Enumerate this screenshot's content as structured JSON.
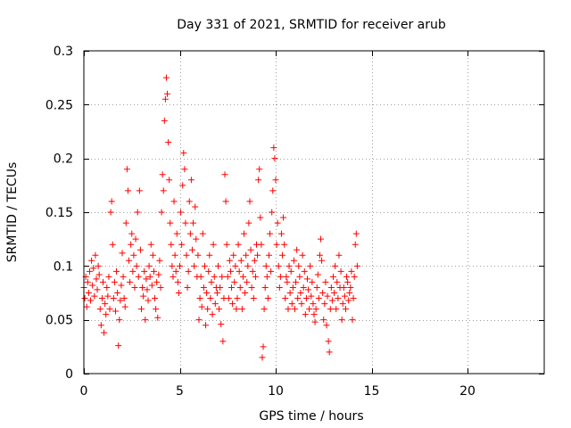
{
  "chart_data": {
    "type": "scatter",
    "title": "Day 331 of 2021, SRMTID for receiver arub",
    "xlabel": "GPS time / hours",
    "ylabel": "SRMTID / TECUs",
    "xlim": [
      0,
      24
    ],
    "ylim": [
      0,
      0.3
    ],
    "xticks": [
      0,
      5,
      10,
      15,
      20
    ],
    "xtick_labels": [
      "0",
      "5",
      "10",
      "15",
      "20"
    ],
    "yticks": [
      0,
      0.05,
      0.1,
      0.15,
      0.2,
      0.25,
      0.3
    ],
    "ytick_labels": [
      "0",
      "0.05",
      "0.1",
      "0.15",
      "0.2",
      "0.25",
      "0.3"
    ],
    "grid": true,
    "marker": "plus",
    "series": [
      {
        "name": "SRMTID",
        "color": "#ff0000",
        "points": [
          [
            0.0,
            0.08
          ],
          [
            0.05,
            0.07
          ],
          [
            0.1,
            0.09
          ],
          [
            0.15,
            0.062
          ],
          [
            0.2,
            0.085
          ],
          [
            0.25,
            0.075
          ],
          [
            0.3,
            0.095
          ],
          [
            0.35,
            0.068
          ],
          [
            0.4,
            0.105
          ],
          [
            0.45,
            0.082
          ],
          [
            0.5,
            0.098
          ],
          [
            0.55,
            0.072
          ],
          [
            0.6,
            0.11
          ],
          [
            0.65,
            0.088
          ],
          [
            0.7,
            0.078
          ],
          [
            0.75,
            0.1
          ],
          [
            0.8,
            0.092
          ],
          [
            0.85,
            0.06
          ],
          [
            0.9,
            0.045
          ],
          [
            0.95,
            0.07
          ],
          [
            1.0,
            0.085
          ],
          [
            1.05,
            0.038
          ],
          [
            1.1,
            0.065
          ],
          [
            1.15,
            0.055
          ],
          [
            1.2,
            0.08
          ],
          [
            1.25,
            0.072
          ],
          [
            1.3,
            0.09
          ],
          [
            1.35,
            0.06
          ],
          [
            1.4,
            0.15
          ],
          [
            1.45,
            0.16
          ],
          [
            1.5,
            0.12
          ],
          [
            1.55,
            0.07
          ],
          [
            1.6,
            0.085
          ],
          [
            1.65,
            0.058
          ],
          [
            1.7,
            0.095
          ],
          [
            1.75,
            0.075
          ],
          [
            1.8,
            0.026
          ],
          [
            1.85,
            0.05
          ],
          [
            1.9,
            0.068
          ],
          [
            1.95,
            0.082
          ],
          [
            2.0,
            0.112
          ],
          [
            2.05,
            0.09
          ],
          [
            2.1,
            0.07
          ],
          [
            2.15,
            0.062
          ],
          [
            2.2,
            0.14
          ],
          [
            2.25,
            0.19
          ],
          [
            2.3,
            0.17
          ],
          [
            2.35,
            0.105
          ],
          [
            2.4,
            0.085
          ],
          [
            2.45,
            0.12
          ],
          [
            2.5,
            0.13
          ],
          [
            2.55,
            0.095
          ],
          [
            2.6,
            0.11
          ],
          [
            2.65,
            0.08
          ],
          [
            2.7,
            0.125
          ],
          [
            2.75,
            0.1
          ],
          [
            2.8,
            0.15
          ],
          [
            2.85,
            0.09
          ],
          [
            2.9,
            0.17
          ],
          [
            2.95,
            0.115
          ],
          [
            3.0,
            0.06
          ],
          [
            3.05,
            0.08
          ],
          [
            3.1,
            0.072
          ],
          [
            3.15,
            0.095
          ],
          [
            3.2,
            0.05
          ],
          [
            3.25,
            0.088
          ],
          [
            3.3,
            0.078
          ],
          [
            3.35,
            0.068
          ],
          [
            3.4,
            0.1
          ],
          [
            3.45,
            0.09
          ],
          [
            3.5,
            0.12
          ],
          [
            3.55,
            0.082
          ],
          [
            3.6,
            0.11
          ],
          [
            3.65,
            0.095
          ],
          [
            3.7,
            0.07
          ],
          [
            3.75,
            0.06
          ],
          [
            3.8,
            0.085
          ],
          [
            3.85,
            0.052
          ],
          [
            3.9,
            0.092
          ],
          [
            3.95,
            0.105
          ],
          [
            4.0,
            0.08
          ],
          [
            4.05,
            0.15
          ],
          [
            4.1,
            0.185
          ],
          [
            4.15,
            0.17
          ],
          [
            4.2,
            0.235
          ],
          [
            4.25,
            0.255
          ],
          [
            4.3,
            0.275
          ],
          [
            4.35,
            0.26
          ],
          [
            4.4,
            0.215
          ],
          [
            4.45,
            0.18
          ],
          [
            4.5,
            0.14
          ],
          [
            4.55,
            0.12
          ],
          [
            4.6,
            0.1
          ],
          [
            4.65,
            0.09
          ],
          [
            4.7,
            0.16
          ],
          [
            4.75,
            0.11
          ],
          [
            4.8,
            0.095
          ],
          [
            4.85,
            0.13
          ],
          [
            4.9,
            0.085
          ],
          [
            4.95,
            0.075
          ],
          [
            5.0,
            0.1
          ],
          [
            5.05,
            0.15
          ],
          [
            5.1,
            0.12
          ],
          [
            5.15,
            0.175
          ],
          [
            5.2,
            0.205
          ],
          [
            5.25,
            0.19
          ],
          [
            5.3,
            0.14
          ],
          [
            5.35,
            0.11
          ],
          [
            5.4,
            0.08
          ],
          [
            5.45,
            0.095
          ],
          [
            5.5,
            0.16
          ],
          [
            5.55,
            0.13
          ],
          [
            5.6,
            0.18
          ],
          [
            5.65,
            0.115
          ],
          [
            5.7,
            0.14
          ],
          [
            5.75,
            0.1
          ],
          [
            5.8,
            0.155
          ],
          [
            5.85,
            0.125
          ],
          [
            5.9,
            0.09
          ],
          [
            5.95,
            0.11
          ],
          [
            6.0,
            0.05
          ],
          [
            6.05,
            0.07
          ],
          [
            6.1,
            0.09
          ],
          [
            6.15,
            0.062
          ],
          [
            6.2,
            0.13
          ],
          [
            6.25,
            0.08
          ],
          [
            6.3,
            0.1
          ],
          [
            6.35,
            0.045
          ],
          [
            6.4,
            0.075
          ],
          [
            6.45,
            0.06
          ],
          [
            6.5,
            0.095
          ],
          [
            6.55,
            0.11
          ],
          [
            6.6,
            0.07
          ],
          [
            6.65,
            0.085
          ],
          [
            6.7,
            0.055
          ],
          [
            6.75,
            0.12
          ],
          [
            6.8,
            0.09
          ],
          [
            6.85,
            0.065
          ],
          [
            6.9,
            0.08
          ],
          [
            6.95,
            0.075
          ],
          [
            7.0,
            0.1
          ],
          [
            7.05,
            0.06
          ],
          [
            7.1,
            0.08
          ],
          [
            7.15,
            0.046
          ],
          [
            7.2,
            0.09
          ],
          [
            7.25,
            0.03
          ],
          [
            7.3,
            0.07
          ],
          [
            7.35,
            0.185
          ],
          [
            7.4,
            0.16
          ],
          [
            7.45,
            0.12
          ],
          [
            7.5,
            0.09
          ],
          [
            7.55,
            0.07
          ],
          [
            7.6,
            0.105
          ],
          [
            7.65,
            0.095
          ],
          [
            7.7,
            0.08
          ],
          [
            7.75,
            0.065
          ],
          [
            7.8,
            0.11
          ],
          [
            7.85,
            0.085
          ],
          [
            7.9,
            0.1
          ],
          [
            7.95,
            0.06
          ],
          [
            8.0,
            0.07
          ],
          [
            8.05,
            0.12
          ],
          [
            8.1,
            0.095
          ],
          [
            8.15,
            0.08
          ],
          [
            8.2,
            0.105
          ],
          [
            8.25,
            0.06
          ],
          [
            8.3,
            0.09
          ],
          [
            8.35,
            0.13
          ],
          [
            8.4,
            0.075
          ],
          [
            8.45,
            0.11
          ],
          [
            8.5,
            0.085
          ],
          [
            8.55,
            0.1
          ],
          [
            8.6,
            0.14
          ],
          [
            8.65,
            0.16
          ],
          [
            8.7,
            0.115
          ],
          [
            8.75,
            0.08
          ],
          [
            8.8,
            0.095
          ],
          [
            8.85,
            0.07
          ],
          [
            8.9,
            0.105
          ],
          [
            8.95,
            0.09
          ],
          [
            9.0,
            0.12
          ],
          [
            9.05,
            0.11
          ],
          [
            9.1,
            0.18
          ],
          [
            9.15,
            0.19
          ],
          [
            9.2,
            0.145
          ],
          [
            9.25,
            0.12
          ],
          [
            9.3,
            0.015
          ],
          [
            9.35,
            0.025
          ],
          [
            9.4,
            0.06
          ],
          [
            9.45,
            0.08
          ],
          [
            9.5,
            0.1
          ],
          [
            9.55,
            0.09
          ],
          [
            9.6,
            0.07
          ],
          [
            9.65,
            0.11
          ],
          [
            9.7,
            0.13
          ],
          [
            9.75,
            0.095
          ],
          [
            9.8,
            0.15
          ],
          [
            9.85,
            0.17
          ],
          [
            9.9,
            0.21
          ],
          [
            9.95,
            0.2
          ],
          [
            10.0,
            0.18
          ],
          [
            10.05,
            0.12
          ],
          [
            10.1,
            0.14
          ],
          [
            10.15,
            0.1
          ],
          [
            10.2,
            0.08
          ],
          [
            10.25,
            0.09
          ],
          [
            10.3,
            0.13
          ],
          [
            10.35,
            0.11
          ],
          [
            10.4,
            0.145
          ],
          [
            10.45,
            0.12
          ],
          [
            10.5,
            0.07
          ],
          [
            10.55,
            0.09
          ],
          [
            10.6,
            0.085
          ],
          [
            10.65,
            0.06
          ],
          [
            10.7,
            0.1
          ],
          [
            10.75,
            0.075
          ],
          [
            10.8,
            0.095
          ],
          [
            10.85,
            0.065
          ],
          [
            10.9,
            0.08
          ],
          [
            10.95,
            0.105
          ],
          [
            11.0,
            0.06
          ],
          [
            11.05,
            0.085
          ],
          [
            11.1,
            0.115
          ],
          [
            11.15,
            0.07
          ],
          [
            11.2,
            0.1
          ],
          [
            11.25,
            0.09
          ],
          [
            11.3,
            0.075
          ],
          [
            11.35,
            0.065
          ],
          [
            11.4,
            0.11
          ],
          [
            11.45,
            0.08
          ],
          [
            11.5,
            0.095
          ],
          [
            11.55,
            0.055
          ],
          [
            11.6,
            0.07
          ],
          [
            11.65,
            0.088
          ],
          [
            11.7,
            0.078
          ],
          [
            11.75,
            0.06
          ],
          [
            11.8,
            0.1
          ],
          [
            11.85,
            0.072
          ],
          [
            11.9,
            0.085
          ],
          [
            11.95,
            0.065
          ],
          [
            12.0,
            0.055
          ],
          [
            12.05,
            0.048
          ],
          [
            12.1,
            0.06
          ],
          [
            12.15,
            0.08
          ],
          [
            12.2,
            0.092
          ],
          [
            12.25,
            0.07
          ],
          [
            12.3,
            0.11
          ],
          [
            12.35,
            0.125
          ],
          [
            12.4,
            0.105
          ],
          [
            12.45,
            0.075
          ],
          [
            12.5,
            0.05
          ],
          [
            12.55,
            0.065
          ],
          [
            12.6,
            0.085
          ],
          [
            12.65,
            0.045
          ],
          [
            12.7,
            0.072
          ],
          [
            12.75,
            0.03
          ],
          [
            12.8,
            0.02
          ],
          [
            12.85,
            0.06
          ],
          [
            12.9,
            0.08
          ],
          [
            12.95,
            0.068
          ],
          [
            13.0,
            0.09
          ],
          [
            13.05,
            0.075
          ],
          [
            13.1,
            0.1
          ],
          [
            13.15,
            0.06
          ],
          [
            13.2,
            0.085
          ],
          [
            13.25,
            0.07
          ],
          [
            13.3,
            0.11
          ],
          [
            13.35,
            0.08
          ],
          [
            13.4,
            0.095
          ],
          [
            13.45,
            0.05
          ],
          [
            13.5,
            0.065
          ],
          [
            13.55,
            0.08
          ],
          [
            13.6,
            0.072
          ],
          [
            13.65,
            0.06
          ],
          [
            13.7,
            0.09
          ],
          [
            13.75,
            0.085
          ],
          [
            13.8,
            0.068
          ],
          [
            13.85,
            0.075
          ],
          [
            13.9,
            0.08
          ],
          [
            13.95,
            0.095
          ],
          [
            14.0,
            0.05
          ],
          [
            14.05,
            0.07
          ],
          [
            14.1,
            0.09
          ],
          [
            14.15,
            0.12
          ],
          [
            14.2,
            0.13
          ],
          [
            14.25,
            0.1
          ]
        ]
      }
    ]
  }
}
